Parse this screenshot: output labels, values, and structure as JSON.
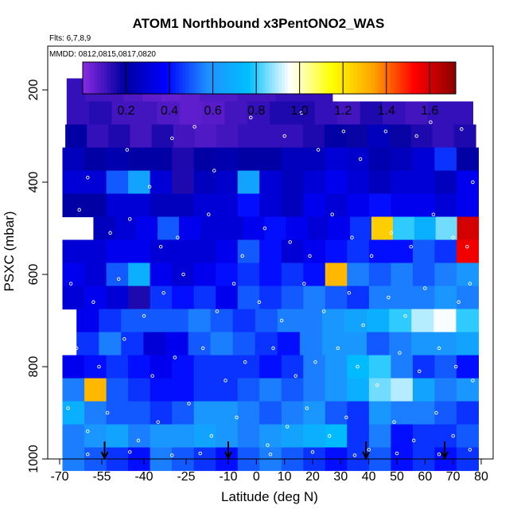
{
  "chart_data": {
    "type": "heatmap",
    "title": "ATOM1 Northbound x3PentONO2_WAS",
    "subtitle_flights": "Flts: 6,7,8,9",
    "subtitle_dates": "MMDD: 0812,0815,0817,0820",
    "xlabel": "Latitude (deg N)",
    "ylabel": "PSXC (mbar)",
    "xlim": [
      -70,
      80
    ],
    "ylim": [
      1000,
      100
    ],
    "x_ticks": [
      -70,
      -55,
      -40,
      -25,
      -10,
      0,
      10,
      20,
      30,
      40,
      50,
      60,
      70,
      80
    ],
    "y_ticks": [
      200,
      400,
      600,
      800,
      1000
    ],
    "colorbar": {
      "range": [
        0,
        1.72
      ],
      "ticks": [
        "0.2",
        "0.4",
        "0.6",
        "0.8",
        "1.0",
        "1.2",
        "1.4",
        "1.6"
      ],
      "tick_values": [
        0.2,
        0.4,
        0.6,
        0.8,
        1.0,
        1.2,
        1.4,
        1.6
      ],
      "colors": [
        "#8a2be2",
        "#0000a0",
        "#0000ff",
        "#1e90ff",
        "#00bfff",
        "#ffffff",
        "#ffff00",
        "#ffa500",
        "#ff0000",
        "#8b0000"
      ]
    },
    "pressure_bins": [
      {
        "p": 200,
        "start": -67.5,
        "end": 27,
        "values": [
          0.12,
          0.1,
          0.1,
          0.08,
          0.06,
          0.05,
          0.06,
          0.08,
          0.08,
          0.1,
          0.1,
          0.12,
          0.12,
          0.12
        ]
      },
      {
        "p": 250,
        "start": -67.5,
        "end": 77,
        "values": [
          0.12,
          0.14,
          0.1,
          0.1,
          0.08,
          0.06,
          0.07,
          0.1,
          0.12,
          0.15,
          0.15,
          0.12,
          0.1,
          0.15,
          0.12,
          0.1,
          0.12,
          0.12
        ]
      },
      {
        "p": 300,
        "start": -68,
        "end": 78,
        "values": [
          0.2,
          0.12,
          0.15,
          0.1,
          0.15,
          0.1,
          0.08,
          0.1,
          0.12,
          0.12,
          0.12,
          0.15,
          0.2,
          0.18,
          0.25,
          0.18,
          0.15,
          0.12,
          0.15
        ]
      },
      {
        "p": 350,
        "start": -69,
        "end": 79,
        "values": [
          0.25,
          0.2,
          0.22,
          0.2,
          0.2,
          0.15,
          0.2,
          0.22,
          0.2,
          0.2,
          0.25,
          0.25,
          0.3,
          0.28,
          0.22,
          0.25,
          0.3,
          0.45,
          0.2
        ]
      },
      {
        "p": 400,
        "start": -69,
        "end": 79,
        "values": [
          0.3,
          0.3,
          0.5,
          0.65,
          0.3,
          0.15,
          0.25,
          0.28,
          0.65,
          0.3,
          0.25,
          0.3,
          0.35,
          0.3,
          0.25,
          0.3,
          0.3,
          0.25,
          0.35
        ]
      },
      {
        "p": 450,
        "start": -69,
        "end": 79,
        "values": [
          0.2,
          0.2,
          0.3,
          0.3,
          0.25,
          0.25,
          0.3,
          0.3,
          0.4,
          0.3,
          0.25,
          0.35,
          0.3,
          0.35,
          0.4,
          0.35,
          0.35,
          0.3,
          0.35
        ]
      },
      {
        "p": 500,
        "start": -58,
        "end": 79,
        "values": [
          0.25,
          0.3,
          0.35,
          0.5,
          0.35,
          0.3,
          0.3,
          0.35,
          0.4,
          0.35,
          0.3,
          0.35,
          0.45,
          1.25,
          0.8,
          0.7,
          0.85,
          1.6
        ]
      },
      {
        "p": 550,
        "start": -69,
        "end": 79,
        "values": [
          0.3,
          0.3,
          0.35,
          0.35,
          0.3,
          0.3,
          0.3,
          0.35,
          0.5,
          0.4,
          0.3,
          0.35,
          0.4,
          0.45,
          0.4,
          0.4,
          0.5,
          0.45,
          1.55
        ]
      },
      {
        "p": 600,
        "start": -69,
        "end": 79,
        "values": [
          0.35,
          0.3,
          0.5,
          0.7,
          0.35,
          0.3,
          0.35,
          0.4,
          0.45,
          0.4,
          0.45,
          0.4,
          1.3,
          0.55,
          0.5,
          0.55,
          0.5,
          0.55,
          0.6
        ]
      },
      {
        "p": 650,
        "start": -69,
        "end": 79,
        "values": [
          0.3,
          0.35,
          0.3,
          0.15,
          0.45,
          0.4,
          0.45,
          0.35,
          0.5,
          0.45,
          0.5,
          0.55,
          0.5,
          0.45,
          0.55,
          0.55,
          0.55,
          0.6,
          0.55
        ]
      },
      {
        "p": 700,
        "start": -64,
        "end": 79,
        "values": [
          0.35,
          0.45,
          0.5,
          0.5,
          0.5,
          0.55,
          0.5,
          0.45,
          0.5,
          0.55,
          0.55,
          0.6,
          0.65,
          0.7,
          0.8,
          0.9,
          0.95,
          0.8
        ]
      },
      {
        "p": 750,
        "start": -64,
        "end": 79,
        "values": [
          0.45,
          0.55,
          0.45,
          0.3,
          0.35,
          0.5,
          0.55,
          0.5,
          0.45,
          0.4,
          0.55,
          0.6,
          0.6,
          0.5,
          0.55,
          0.6,
          0.6,
          0.65
        ]
      },
      {
        "p": 800,
        "start": -69,
        "end": 79,
        "values": [
          0.35,
          0.4,
          0.45,
          0.4,
          0.35,
          0.4,
          0.45,
          0.45,
          0.45,
          0.4,
          0.45,
          0.55,
          0.6,
          0.75,
          0.8,
          0.55,
          0.45,
          0.5,
          0.4
        ]
      },
      {
        "p": 850,
        "start": -69,
        "end": 79,
        "values": [
          0.55,
          1.3,
          0.5,
          0.45,
          0.4,
          0.4,
          0.45,
          0.45,
          0.5,
          0.55,
          0.5,
          0.55,
          0.6,
          0.7,
          0.85,
          0.9,
          0.65,
          0.55,
          0.6
        ]
      },
      {
        "p": 900,
        "start": -69,
        "end": 79,
        "values": [
          0.7,
          0.55,
          0.5,
          0.5,
          0.45,
          0.5,
          0.6,
          0.6,
          0.55,
          0.5,
          0.55,
          0.6,
          0.5,
          0.45,
          0.6,
          0.55,
          0.55,
          0.5,
          0.45
        ]
      },
      {
        "p": 950,
        "start": -69,
        "end": 79,
        "values": [
          0.55,
          0.6,
          0.65,
          0.55,
          0.6,
          0.6,
          0.65,
          0.6,
          0.55,
          0.6,
          0.65,
          0.7,
          0.75,
          0.45,
          0.55,
          0.4,
          0.45,
          0.45,
          0.5
        ]
      },
      {
        "p": 1000,
        "start": -69,
        "end": 79,
        "values": [
          0.55,
          0.5,
          0.45,
          0.4,
          0.55,
          0.5,
          0.45,
          0.4,
          0.5,
          0.55,
          0.5,
          0.45,
          0.4,
          0.45,
          0.5,
          0.4,
          0.45,
          0.4,
          0.45
        ]
      }
    ],
    "arrow_latitudes": [
      -54,
      -10,
      39,
      67
    ],
    "sample_points": [
      [
        -60,
        390
      ],
      [
        -46,
        330
      ],
      [
        -38,
        410
      ],
      [
        -30,
        305
      ],
      [
        -22,
        280
      ],
      [
        -15,
        375
      ],
      [
        -2,
        260
      ],
      [
        10,
        300
      ],
      [
        16,
        250
      ],
      [
        22,
        330
      ],
      [
        31,
        290
      ],
      [
        37,
        350
      ],
      [
        46,
        290
      ],
      [
        57,
        300
      ],
      [
        62,
        270
      ],
      [
        73,
        285
      ],
      [
        77,
        400
      ],
      [
        -63,
        460
      ],
      [
        -52,
        510
      ],
      [
        -45,
        480
      ],
      [
        -34,
        540
      ],
      [
        -28,
        520
      ],
      [
        -17,
        470
      ],
      [
        -5,
        560
      ],
      [
        3,
        500
      ],
      [
        12,
        530
      ],
      [
        19,
        560
      ],
      [
        27,
        470
      ],
      [
        34,
        520
      ],
      [
        41,
        560
      ],
      [
        48,
        510
      ],
      [
        55,
        540
      ],
      [
        63,
        470
      ],
      [
        70,
        520
      ],
      [
        75,
        540
      ],
      [
        -66,
        620
      ],
      [
        -58,
        660
      ],
      [
        -49,
        610
      ],
      [
        -40,
        690
      ],
      [
        -33,
        640
      ],
      [
        -26,
        600
      ],
      [
        -14,
        680
      ],
      [
        -8,
        620
      ],
      [
        1,
        660
      ],
      [
        9,
        700
      ],
      [
        17,
        620
      ],
      [
        24,
        680
      ],
      [
        33,
        640
      ],
      [
        38,
        710
      ],
      [
        47,
        650
      ],
      [
        53,
        690
      ],
      [
        60,
        630
      ],
      [
        67,
        700
      ],
      [
        72,
        660
      ],
      [
        76,
        620
      ],
      [
        -64,
        760
      ],
      [
        -56,
        800
      ],
      [
        -47,
        740
      ],
      [
        -37,
        820
      ],
      [
        -29,
        780
      ],
      [
        -19,
        760
      ],
      [
        -11,
        830
      ],
      [
        -4,
        790
      ],
      [
        6,
        760
      ],
      [
        14,
        820
      ],
      [
        21,
        790
      ],
      [
        29,
        760
      ],
      [
        36,
        800
      ],
      [
        43,
        840
      ],
      [
        51,
        770
      ],
      [
        58,
        810
      ],
      [
        65,
        760
      ],
      [
        71,
        800
      ],
      [
        77,
        830
      ],
      [
        -67,
        890
      ],
      [
        -60,
        940
      ],
      [
        -53,
        900
      ],
      [
        -42,
        960
      ],
      [
        -35,
        920
      ],
      [
        -24,
        880
      ],
      [
        -16,
        950
      ],
      [
        -7,
        910
      ],
      [
        4,
        970
      ],
      [
        11,
        930
      ],
      [
        18,
        890
      ],
      [
        26,
        950
      ],
      [
        32,
        910
      ],
      [
        40,
        980
      ],
      [
        49,
        920
      ],
      [
        56,
        960
      ],
      [
        64,
        900
      ],
      [
        70,
        950
      ],
      [
        76,
        980
      ],
      [
        -60,
        990
      ],
      [
        -45,
        985
      ],
      [
        -30,
        992
      ],
      [
        -20,
        988
      ],
      [
        5,
        990
      ],
      [
        20,
        985
      ],
      [
        35,
        992
      ],
      [
        50,
        988
      ],
      [
        65,
        990
      ]
    ]
  }
}
